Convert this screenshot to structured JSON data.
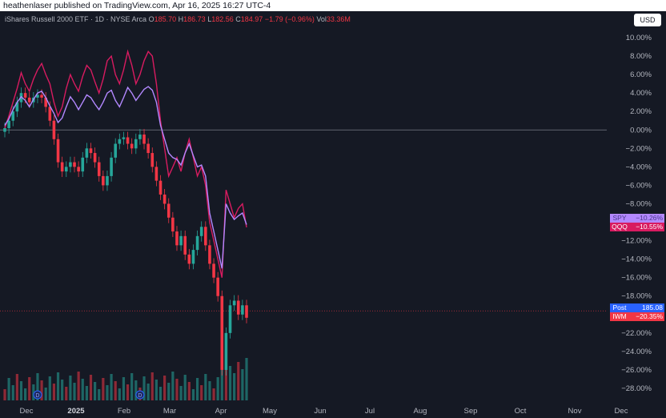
{
  "header": {
    "published": "heathenlaser published on TradingView.com, Apr 16, 2025 16:27 UTC-4"
  },
  "legend": {
    "symbol": "iShares Russell 2000 ETF · 1D · NYSE Arca",
    "o_label": "O",
    "o": "185.70",
    "h_label": "H",
    "h": "186.73",
    "l_label": "L",
    "l": "182.56",
    "c_label": "C",
    "c": "184.97",
    "change": "−1.79 (−0.96%)",
    "vol_label": "Vol",
    "vol": "33.36M"
  },
  "currency_button": "USD",
  "colors": {
    "up": "#26a69a",
    "down": "#f23645",
    "spy": "#b388ff",
    "qqq": "#d81b60",
    "bg": "#151924"
  },
  "chart_data": {
    "type": "line",
    "y_axis": {
      "scale": "percent",
      "ticks": [
        "10.00%",
        "8.00%",
        "6.00%",
        "4.00%",
        "2.00%",
        "0.00%",
        "−2.00%",
        "−4.00%",
        "−6.00%",
        "−8.00%",
        "−10.00%",
        "−12.00%",
        "−14.00%",
        "−16.00%",
        "−18.00%",
        "−20.00%",
        "−22.00%",
        "−24.00%",
        "−26.00%",
        "−28.00%"
      ],
      "range": [
        -29.5,
        11
      ]
    },
    "x_axis": {
      "ticks": [
        {
          "label": "Dec",
          "bold": false
        },
        {
          "label": "2025",
          "bold": true
        },
        {
          "label": "Feb",
          "bold": false
        },
        {
          "label": "Mar",
          "bold": false
        },
        {
          "label": "Apr",
          "bold": false
        },
        {
          "label": "May",
          "bold": false
        },
        {
          "label": "Jun",
          "bold": false
        },
        {
          "label": "Jul",
          "bold": false
        },
        {
          "label": "Aug",
          "bold": false
        },
        {
          "label": "Sep",
          "bold": false
        },
        {
          "label": "Oct",
          "bold": false
        },
        {
          "label": "Nov",
          "bold": false
        },
        {
          "label": "Dec",
          "bold": false
        }
      ]
    },
    "series": [
      {
        "name": "QQQ",
        "color": "#d81b60",
        "values": [
          0.2,
          1.5,
          3.0,
          4.5,
          6.2,
          5.0,
          4.2,
          5.5,
          6.5,
          7.2,
          6.0,
          5.0,
          3.0,
          1.5,
          2.5,
          4.5,
          6.0,
          5.0,
          4.2,
          5.8,
          7.0,
          6.5,
          5.2,
          4.0,
          5.5,
          7.5,
          8.0,
          6.0,
          5.0,
          6.5,
          8.5,
          7.0,
          5.0,
          6.0,
          7.5,
          8.5,
          8.0,
          5.0,
          1.0,
          -2.0,
          -5.0,
          -4.0,
          -3.0,
          -4.5,
          -2.5,
          -1.0,
          -3.0,
          -5.0,
          -4.0,
          -6.0,
          -10.0,
          -12.0,
          -14.0,
          -16.0,
          -6.5,
          -8.0,
          -9.5,
          -8.5,
          -8.0,
          -10.55
        ]
      },
      {
        "name": "SPY",
        "color": "#b388ff",
        "values": [
          0.5,
          1.2,
          2.2,
          3.0,
          3.6,
          3.2,
          2.5,
          3.3,
          4.0,
          4.2,
          3.5,
          2.6,
          1.8,
          0.8,
          1.3,
          2.5,
          3.6,
          3.0,
          2.2,
          3.0,
          3.8,
          3.5,
          2.8,
          2.2,
          3.0,
          4.0,
          4.3,
          3.2,
          2.5,
          3.5,
          4.6,
          4.0,
          3.2,
          3.8,
          4.4,
          4.7,
          4.3,
          3.0,
          0.5,
          -1.0,
          -2.5,
          -3.0,
          -3.2,
          -3.8,
          -2.5,
          -1.5,
          -2.8,
          -4.0,
          -3.8,
          -5.0,
          -9.0,
          -11.0,
          -13.0,
          -15.0,
          -8.0,
          -9.0,
          -9.7,
          -9.3,
          -9.0,
          -10.26
        ]
      },
      {
        "name": "IWM",
        "color": "#f23645",
        "values": [
          0.2,
          1.0,
          2.0,
          3.0,
          4.0,
          3.5,
          3.0,
          3.5,
          3.8,
          3.5,
          2.5,
          1.0,
          -1.0,
          -3.5,
          -4.5,
          -4.0,
          -3.5,
          -4.0,
          -4.5,
          -3.0,
          -2.0,
          -2.5,
          -3.5,
          -5.0,
          -6.0,
          -5.0,
          -3.0,
          -1.5,
          -1.0,
          -0.8,
          -1.5,
          -2.0,
          -1.0,
          -0.5,
          -1.5,
          -2.5,
          -4.0,
          -5.5,
          -7.0,
          -8.0,
          -9.5,
          -11.0,
          -12.5,
          -11.5,
          -13.5,
          -14.5,
          -13.0,
          -11.5,
          -10.5,
          -12.5,
          -14.5,
          -16.0,
          -18.0,
          -26.0,
          -22.0,
          -19.0,
          -18.5,
          -20.0,
          -19.0,
          -20.35
        ]
      }
    ],
    "tags": [
      {
        "label": "SPY",
        "value": "−10.26%",
        "bg": "#b388ff",
        "text": "#4a3a8a",
        "pct": -10.26
      },
      {
        "label": "QQQ",
        "value": "−10.55%",
        "bg": "#d81b60",
        "text": "#ffffff",
        "pct": -10.55
      },
      {
        "label": "Post",
        "value": "185.08",
        "bg": "#2962ff",
        "text": "#ffffff",
        "pct": -19.6
      },
      {
        "label": "IWM",
        "value": "−20.35%",
        "bg": "#f23645",
        "text": "#ffffff",
        "pct": -20.35
      }
    ],
    "dividend_markers": [
      {
        "label": "D",
        "index": 8
      },
      {
        "label": "D",
        "index": 33
      }
    ],
    "volume_bars": 60,
    "gridlines": false,
    "legend_placement": "top-left"
  }
}
